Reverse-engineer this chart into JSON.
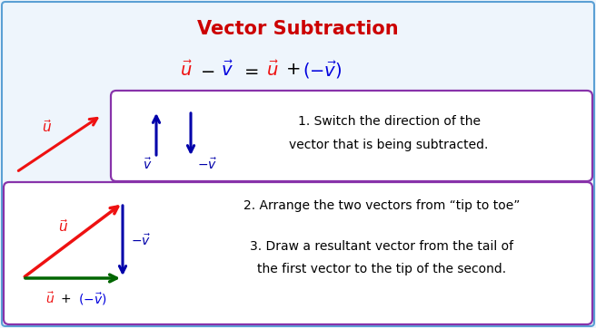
{
  "title": "Vector Subtraction",
  "title_color": "#cc0000",
  "title_fontsize": 15,
  "bg_color": "#eef5fc",
  "border_color": "#5a9fd4",
  "red_color": "#ee1111",
  "blue_color": "#0000dd",
  "dark_blue_color": "#0000aa",
  "green_color": "#006600",
  "purple_color": "#8833aa",
  "box1_text1": "1. Switch the direction of the",
  "box1_text2": "vector that is being subtracted.",
  "box2_text1": "2. Arrange the two vectors from “tip to toe”",
  "box2_text2": "3. Draw a resultant vector from the tail of",
  "box2_text3": "the first vector to the tip of the second."
}
